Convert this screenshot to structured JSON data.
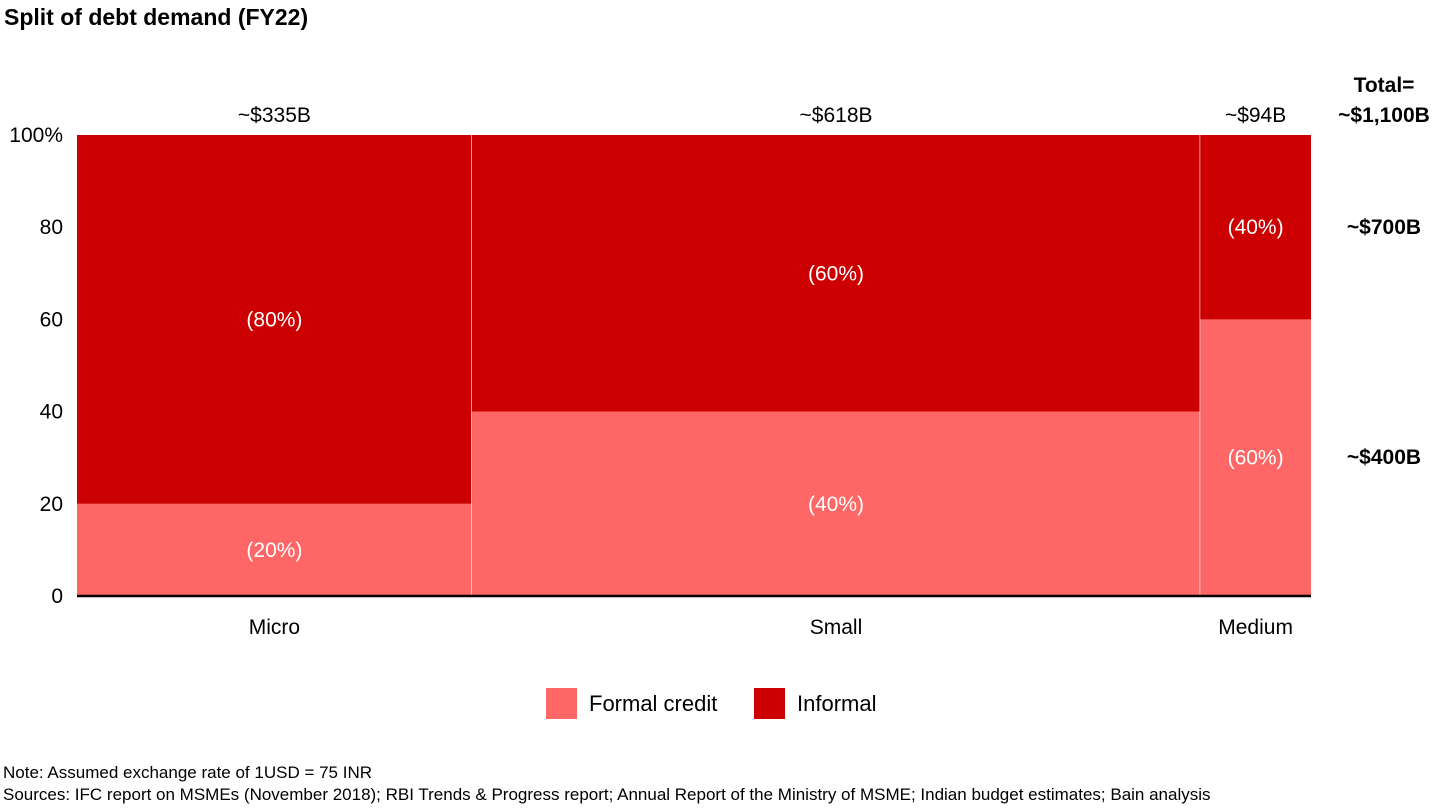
{
  "title": "Split of debt demand (FY22)",
  "colors": {
    "formal": "#ff6666",
    "informal": "#cc0000"
  },
  "chart_data": {
    "type": "bar",
    "subtype": "marimekko (variable-width 100% stacked bar)",
    "categories": [
      "Micro",
      "Small",
      "Medium"
    ],
    "category_totals": [
      335,
      618,
      94
    ],
    "category_total_labels": [
      "~$335B",
      "~$618B",
      "~$94B"
    ],
    "series": [
      {
        "name": "Formal credit",
        "values": [
          20,
          40,
          60
        ],
        "labels": [
          "(20%)",
          "(40%)",
          "(60%)"
        ]
      },
      {
        "name": "Informal",
        "values": [
          80,
          60,
          40
        ],
        "labels": [
          "(80%)",
          "(60%)",
          "(40%)"
        ]
      }
    ],
    "yticks": [
      "0",
      "20",
      "40",
      "60",
      "80",
      "100%"
    ],
    "ylim": [
      0,
      100
    ],
    "legend_position": "bottom",
    "totals_right": {
      "total_line1": "Total=",
      "total_line2": "~$1,100B",
      "informal_total": "~$700B",
      "formal_total": "~$400B"
    }
  },
  "notes": {
    "note": "Note: Assumed exchange rate of 1USD = 75 INR",
    "sources": "Sources: IFC report on MSMEs (November 2018); RBI Trends & Progress report; Annual Report of the Ministry of MSME; Indian budget estimates; Bain analysis"
  }
}
